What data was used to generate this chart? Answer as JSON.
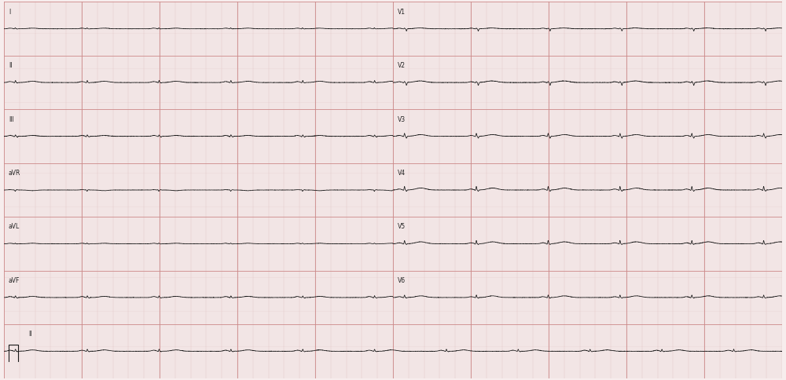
{
  "bg_color": "#f7eded",
  "grid_minor_color": "#ddbfbf",
  "grid_major_color": "#cc8888",
  "trace_color": "#1a1a1a",
  "label_color": "#222222",
  "fig_width": 10.0,
  "fig_height": 4.84,
  "dpi": 100,
  "leads_left": [
    "I",
    "II",
    "III",
    "aVR",
    "aVL",
    "aVF"
  ],
  "leads_right": [
    "V1",
    "V2",
    "V3",
    "V4",
    "V5",
    "V6"
  ],
  "n_rows": 7,
  "sample_rate": 500,
  "duration": 10.0,
  "hr": 65,
  "minor_step": 0.04,
  "major_step": 0.2,
  "minor_row_divs": 5,
  "scale": 0.3
}
